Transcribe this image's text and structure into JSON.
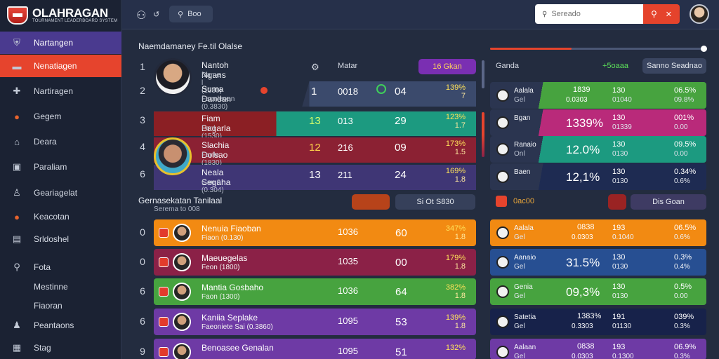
{
  "app": {
    "title": "OLAHRAGAN",
    "subtitle": "TOURNAMENT LEADERBOARD SYSTEM"
  },
  "sidebar": {
    "items": [
      {
        "label": "Nartangen",
        "icon": "shield-icon",
        "icon_glyph": "⛨"
      },
      {
        "label": "Nenatiagen",
        "icon": "flag-icon",
        "icon_glyph": "▬"
      },
      {
        "label": "Nartiragen",
        "icon": "users-icon",
        "icon_glyph": "✚"
      },
      {
        "label": "Gegem",
        "icon": "ball-icon",
        "icon_glyph": "●"
      },
      {
        "label": "Deara",
        "icon": "home-icon",
        "icon_glyph": "⌂"
      },
      {
        "label": "Paraliam",
        "icon": "calendar-icon",
        "icon_glyph": "▣"
      },
      {
        "label": "Geariagelat",
        "icon": "user-icon",
        "icon_glyph": "♙"
      },
      {
        "label": "Keacotan",
        "icon": "fire-icon",
        "icon_glyph": "●"
      },
      {
        "label": "Srldoshel",
        "icon": "file-icon",
        "icon_glyph": "▤"
      },
      {
        "label": "Fota",
        "icon": "search-icon",
        "icon_glyph": "⚲"
      },
      {
        "label": "Mestinne",
        "icon": "",
        "icon_glyph": ""
      },
      {
        "label": "Fiaoran",
        "icon": "",
        "icon_glyph": ""
      },
      {
        "label": "Peantaons",
        "icon": "person-icon",
        "icon_glyph": "♟"
      },
      {
        "label": "Stag",
        "icon": "grid-icon",
        "icon_glyph": "▦"
      }
    ]
  },
  "topbar": {
    "pill_label": "Boo",
    "search_placeholder": "Sereado"
  },
  "section1": {
    "title": "Naemdamaney Fe.til Olalse",
    "col_manager": "Matar",
    "col_right": "Ganda",
    "col_right_value": "+5oaaa",
    "chip_left": "16 Gkan",
    "chip_right": "Sanno Seadnao"
  },
  "section2": {
    "title": "Gernasekatan Tanilaal",
    "subtitle": "Serema to 008",
    "chip_mid": "Si  Ot S830",
    "chip_right_label": "0ac00",
    "chip_far": "Dis Goan"
  },
  "top_players": [
    {
      "rank": "1",
      "name": "Nantoh Ngans",
      "meta": "Dame l (1330)"
    },
    {
      "rank": "2",
      "name": "Suma Dandan",
      "meta": "Faonleoan (0.3830)",
      "s1": "1",
      "s2": "0018",
      "s3": "04",
      "pct": "139%",
      "pct2": "7"
    },
    {
      "rank": "3",
      "name": "Fiam Bagarla",
      "meta": "Fanl (1530)",
      "s1": "13",
      "s2": "013",
      "s3": "29",
      "pct": "123%",
      "pct2": "1.7"
    },
    {
      "rank": "4",
      "name": "Slachia Dolsao",
      "meta": "Fanle (1830)",
      "s1": "12",
      "s2": "216",
      "s3": "09",
      "pct": "173%",
      "pct2": "1.5"
    },
    {
      "rank": "6",
      "name": "Neala Segaha",
      "meta": "Gan 0 (0.304)",
      "s1": "13",
      "s2": "211",
      "s3": "24",
      "pct": "169%",
      "pct2": "1.8"
    }
  ],
  "right_top": [
    {
      "name": "Aalala",
      "meta": "Gel",
      "n1": "1839",
      "n1b": "0.0303",
      "n2": "130",
      "n2b": "01040",
      "pct": "06.5%",
      "pct2": "09.8%"
    },
    {
      "name": "Bgan",
      "meta": "",
      "n1": "1339%",
      "n1b": "",
      "n2": "130",
      "n2b": "01339",
      "pct": "001%",
      "pct2": "0.00"
    },
    {
      "name": "Ranaio",
      "meta": "Onl",
      "n1": "12.0%",
      "n1b": "",
      "n2": "130",
      "n2b": "0130",
      "pct": "09.5%",
      "pct2": "0.00"
    },
    {
      "name": "Baen",
      "meta": "",
      "n1": "12,1%",
      "n1b": "",
      "n2": "130",
      "n2b": "0130",
      "pct": "0.34%",
      "pct2": "0.6%"
    }
  ],
  "bottom_players": [
    {
      "rank": "0",
      "name": "Nenuia Fiaoban",
      "meta": "Fiaon (0.130)",
      "s2": "1036",
      "s3": "60",
      "pct": "347%",
      "pct2": "1.8"
    },
    {
      "rank": "0",
      "name": "Maeuegelas",
      "meta": "Feon (1800)",
      "s2": "1035",
      "s3": "00",
      "pct": "179%",
      "pct2": "1.8"
    },
    {
      "rank": "6",
      "name": "Mantia Gosbaho",
      "meta": "Faon (1300)",
      "s2": "1036",
      "s3": "64",
      "pct": "382%",
      "pct2": "1.8"
    },
    {
      "rank": "6",
      "name": "Kaniia Seplake",
      "meta": "Faeoniete Sai (0.3860)",
      "s2": "1095",
      "s3": "53",
      "pct": "139%",
      "pct2": "1.8"
    },
    {
      "rank": "9",
      "name": "Benoasee Genalan",
      "meta": "",
      "s2": "1095",
      "s3": "51",
      "pct": "132%",
      "pct2": ""
    }
  ],
  "right_bottom": [
    {
      "name": "Aalala",
      "meta": "Gel",
      "n1": "0838",
      "n1b": "0.0303",
      "n2": "193",
      "n2b": "0.1040",
      "pct": "06.5%",
      "pct2": "0.6%"
    },
    {
      "name": "Aanaio",
      "meta": "Gel",
      "n1": "31.5%",
      "n1b": "",
      "n2": "130",
      "n2b": "0130",
      "pct": "0.3%",
      "pct2": "0.4%"
    },
    {
      "name": "Genia",
      "meta": "Gel",
      "n1": "09,3%",
      "n1b": "",
      "n2": "130",
      "n2b": "0130",
      "pct": "0.5%",
      "pct2": "0.00"
    },
    {
      "name": "Satetia",
      "meta": "Gel",
      "n1": "1383%",
      "n1b": "0.3303",
      "n2": "191",
      "n2b": "01130",
      "pct": "039%",
      "pct2": "0.3%"
    },
    {
      "name": "Aalaan",
      "meta": "Gel",
      "n1": "0838",
      "n1b": "0.0303",
      "n2": "193",
      "n2b": "0.1300",
      "pct": "06.9%",
      "pct2": "0.3%"
    }
  ],
  "colors": {
    "accent": "#e6442d",
    "purple": "#4a3a8f",
    "orange": "#f28a12",
    "maroon": "#8b2147",
    "green": "#47a33f",
    "violet": "#6e3aa5",
    "teal": "#1c9a80",
    "magenta": "#b92a7a",
    "blue": "#274f92",
    "navy": "#17224a"
  }
}
